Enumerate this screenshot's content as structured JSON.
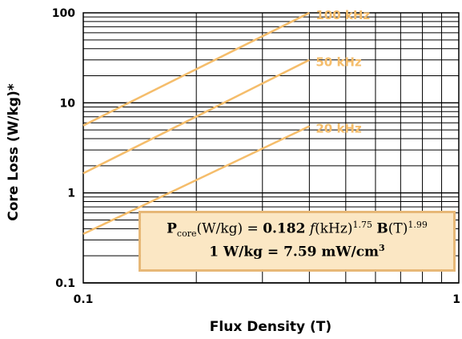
{
  "chart_data": {
    "type": "line",
    "title": "",
    "xlabel": "Flux Density (T)",
    "ylabel": "Core Loss (W/kg)*",
    "xscale": "log",
    "yscale": "log",
    "xlim": [
      0.1,
      1
    ],
    "ylim": [
      0.1,
      100
    ],
    "x_tick_labels": [
      "0.1",
      "1"
    ],
    "y_tick_labels": [
      "0.1",
      "1",
      "10",
      "100"
    ],
    "grid": true,
    "line_color": "#f5bd6b",
    "series": [
      {
        "name": "100 kHz",
        "x": [
          0.1,
          0.4
        ],
        "y": [
          5.6,
          100
        ]
      },
      {
        "name": "50 kHz",
        "x": [
          0.1,
          0.4
        ],
        "y": [
          1.65,
          30
        ]
      },
      {
        "name": "20 kHz",
        "x": [
          0.1,
          0.4
        ],
        "y": [
          0.35,
          5.5
        ]
      }
    ]
  },
  "annotation": {
    "formula_p": "P",
    "formula_sub": "core",
    "formula_units": "(W/kg) = ",
    "formula_coef": "0.182",
    "formula_f": "f",
    "formula_f_units": "(kHz)",
    "formula_f_exp": "1.75",
    "formula_b": "B",
    "formula_b_units": "(T)",
    "formula_b_exp": "1.99",
    "conversion_main": "1 W/kg = 7.59 mW/cm",
    "conversion_exp": "3"
  }
}
